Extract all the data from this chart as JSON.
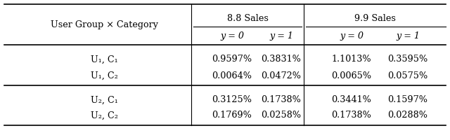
{
  "col_header_row1_label": "User Group × Category",
  "sales_88": "8.8 Sales",
  "sales_99": "9.9 Sales",
  "subheader": [
    "y = 0",
    "y = 1",
    "y = 0",
    "y = 1"
  ],
  "rows": [
    [
      "U₁, C₁",
      "0.9597%",
      "0.3831%",
      "1.1013%",
      "0.3595%"
    ],
    [
      "U₁, C₂",
      "0.0064%",
      "0.0472%",
      "0.0065%",
      "0.0575%"
    ],
    [
      "U₂, C₁",
      "0.3125%",
      "0.1738%",
      "0.3441%",
      "0.1597%"
    ],
    [
      "U₂, C₂",
      "0.1769%",
      "0.0258%",
      "0.1738%",
      "0.0288%"
    ]
  ],
  "bg_color": "#ffffff",
  "text_color": "#000000",
  "font_size": 9.2
}
